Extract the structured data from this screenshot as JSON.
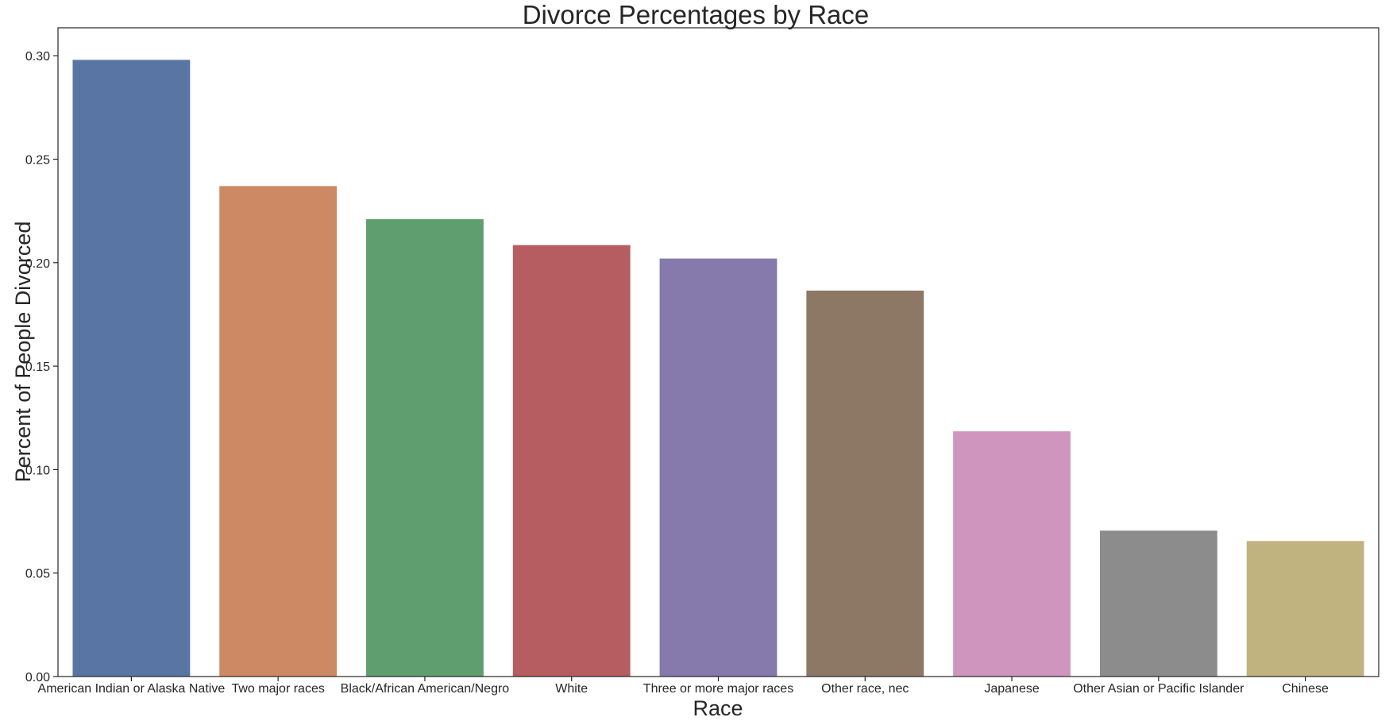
{
  "chart_data": {
    "type": "bar",
    "title": "Divorce Percentages by Race",
    "xlabel": "Race",
    "ylabel": "Percent of People Divorced",
    "categories": [
      "American Indian or Alaska Native",
      "Two major races",
      "Black/African American/Negro",
      "White",
      "Three or more major races",
      "Other race, nec",
      "Japanese",
      "Other Asian or Pacific Islander",
      "Chinese"
    ],
    "values": [
      0.298,
      0.237,
      0.221,
      0.2085,
      0.202,
      0.1865,
      0.1185,
      0.0705,
      0.0655
    ],
    "colors": [
      "#5975a4",
      "#cc8963",
      "#5f9e6e",
      "#b55d60",
      "#857aab",
      "#8d7866",
      "#d095bf",
      "#8c8c8c",
      "#c1b37f"
    ],
    "ylim": [
      0,
      0.3135
    ],
    "yticks": [
      "0.00",
      "0.05",
      "0.10",
      "0.15",
      "0.20",
      "0.25",
      "0.30"
    ],
    "grid": false,
    "legend": "none"
  }
}
